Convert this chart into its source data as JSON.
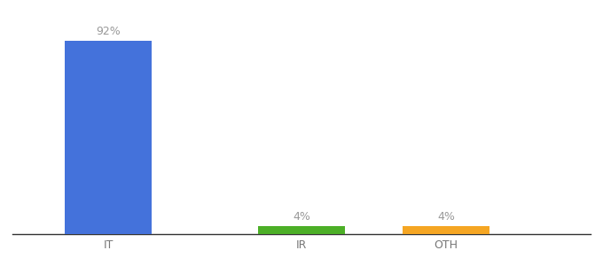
{
  "categories": [
    "IT",
    "IR",
    "OTH"
  ],
  "values": [
    92,
    4,
    4
  ],
  "bar_colors": [
    "#4472db",
    "#4caf27",
    "#f5a623"
  ],
  "bar_labels": [
    "92%",
    "4%",
    "4%"
  ],
  "x_positions": [
    1,
    3,
    4.5
  ],
  "bar_width": 0.9,
  "ylim": [
    0,
    105
  ],
  "xlim": [
    0,
    6
  ],
  "background_color": "#ffffff",
  "label_fontsize": 9,
  "tick_fontsize": 9,
  "label_color": "#999999",
  "tick_color": "#777777"
}
